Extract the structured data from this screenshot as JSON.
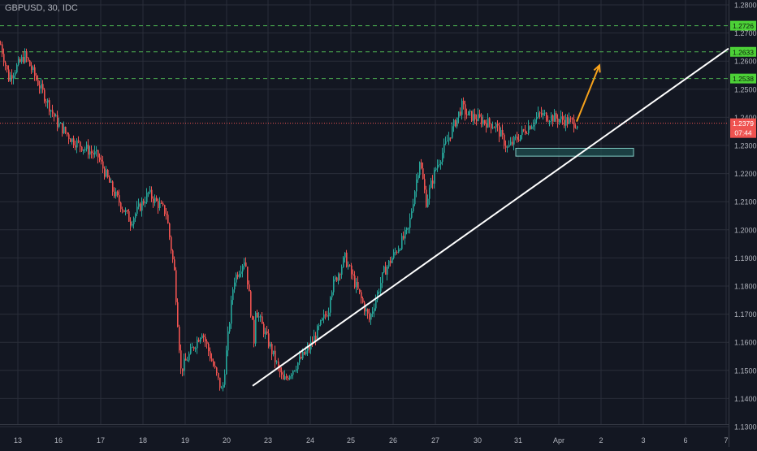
{
  "header": {
    "symbol_title": "GBPUSD, 30, IDC"
  },
  "colors": {
    "background": "#131722",
    "grid": "#2a2e39",
    "text": "#b2b5be",
    "up": "#26a69a",
    "down": "#ef5350",
    "level_line": "#4caf50",
    "level_label_bg": "#4cd137",
    "current_price": "#ef5350",
    "trendline": "#ffffff",
    "arrow": "#f7a21b",
    "zone_fill": "#1f4e4f",
    "zone_stroke": "#80cbc4"
  },
  "chart_data": {
    "type": "candlestick",
    "symbol": "GBPUSD",
    "interval": "30",
    "source": "IDC",
    "ylim": [
      1.125,
      1.282
    ],
    "grid": true,
    "y_ticks": [
      "1.2800",
      "1.2700",
      "1.2600",
      "1.2500",
      "1.2400",
      "1.2300",
      "1.2200",
      "1.2100",
      "1.2000",
      "1.1900",
      "1.1800",
      "1.1700",
      "1.1600",
      "1.1500",
      "1.1400",
      "1.1300"
    ],
    "x_ticks": [
      "13",
      "16",
      "17",
      "18",
      "19",
      "20",
      "23",
      "24",
      "25",
      "26",
      "27",
      "30",
      "31",
      "Apr",
      "2",
      "3",
      "6",
      "7"
    ],
    "level_lines": [
      {
        "price": 1.2726,
        "label": "1.2726"
      },
      {
        "price": 1.2633,
        "label": "1.2633"
      },
      {
        "price": 1.2538,
        "label": "1.2538"
      }
    ],
    "current_price": {
      "price": 1.2379,
      "label": "1.2379",
      "countdown": "07:44"
    },
    "trendline": {
      "from": {
        "x": "23",
        "y": 1.1445
      },
      "to": {
        "x": "7",
        "y": 1.2645
      }
    },
    "zone": {
      "x_start": "31",
      "x_end": "2",
      "y_top": 1.229,
      "y_bottom": 1.2262
    },
    "arrow": {
      "from": {
        "x": "Apr",
        "y": 1.2385
      },
      "to": {
        "x": "2",
        "y": 1.2585
      }
    },
    "price_path": [
      {
        "x": "13",
        "y": 1.266
      },
      {
        "x": "13",
        "y": 1.254
      },
      {
        "x": "13",
        "y": 1.262
      },
      {
        "x": "16",
        "y": 1.238
      },
      {
        "x": "16",
        "y": 1.232
      },
      {
        "x": "17",
        "y": 1.226
      },
      {
        "x": "17",
        "y": 1.214
      },
      {
        "x": "18",
        "y": 1.203
      },
      {
        "x": "18",
        "y": 1.213
      },
      {
        "x": "18",
        "y": 1.206
      },
      {
        "x": "19",
        "y": 1.185
      },
      {
        "x": "19",
        "y": 1.15
      },
      {
        "x": "19",
        "y": 1.164
      },
      {
        "x": "20",
        "y": 1.142
      },
      {
        "x": "20",
        "y": 1.182
      },
      {
        "x": "20",
        "y": 1.19
      },
      {
        "x": "20",
        "y": 1.158
      },
      {
        "x": "23",
        "y": 1.172
      },
      {
        "x": "23",
        "y": 1.146
      },
      {
        "x": "24",
        "y": 1.158
      },
      {
        "x": "24",
        "y": 1.172
      },
      {
        "x": "25",
        "y": 1.178
      },
      {
        "x": "25",
        "y": 1.19
      },
      {
        "x": "25",
        "y": 1.168
      },
      {
        "x": "26",
        "y": 1.185
      },
      {
        "x": "26",
        "y": 1.2
      },
      {
        "x": "26",
        "y": 1.21
      },
      {
        "x": "27",
        "y": 1.225
      },
      {
        "x": "27",
        "y": 1.222
      },
      {
        "x": "27",
        "y": 1.244
      },
      {
        "x": "30",
        "y": 1.241
      },
      {
        "x": "30",
        "y": 1.237
      },
      {
        "x": "31",
        "y": 1.229
      },
      {
        "x": "31",
        "y": 1.241
      },
      {
        "x": "Apr",
        "y": 1.2379
      }
    ]
  }
}
